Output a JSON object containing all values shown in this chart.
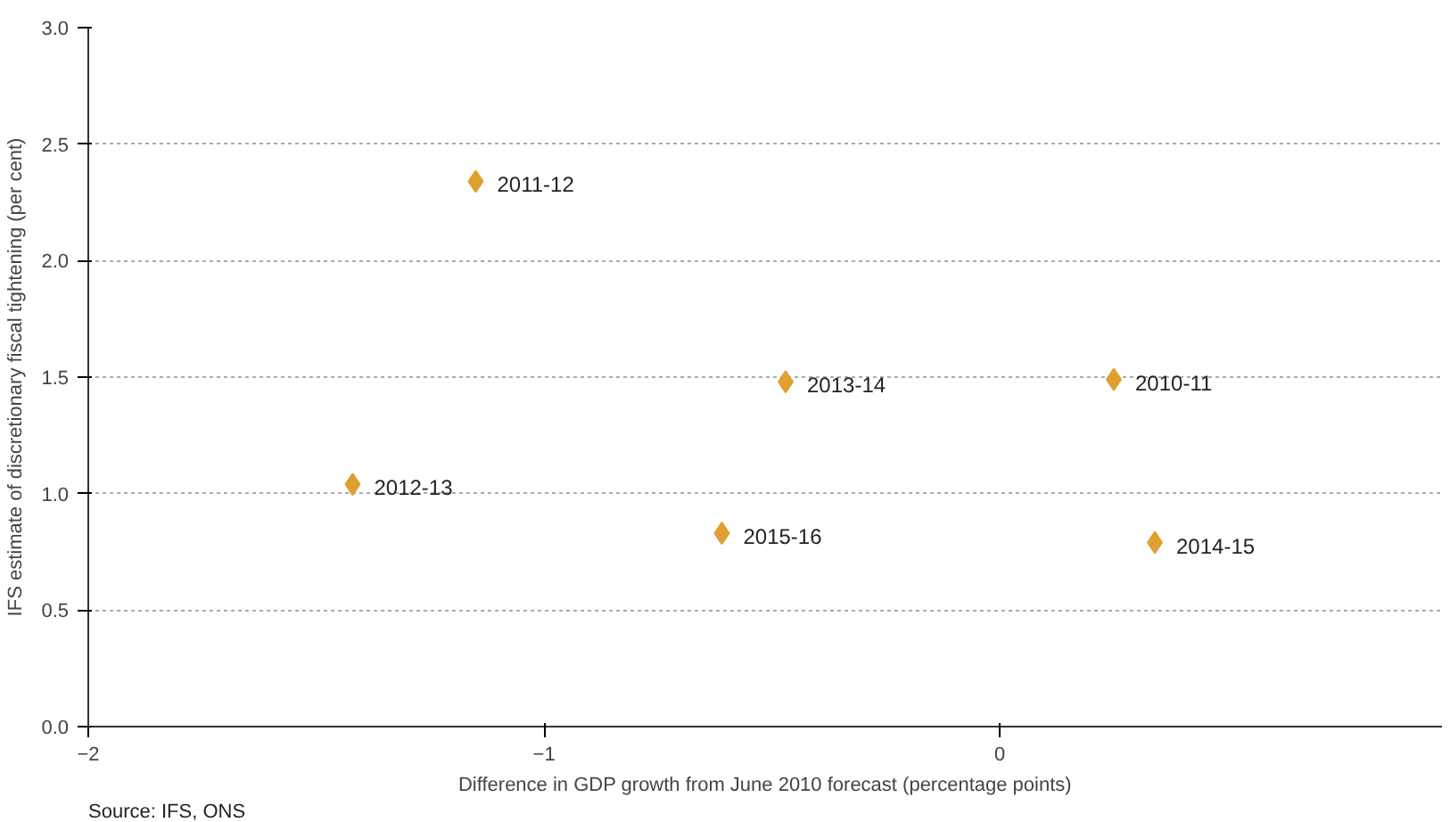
{
  "chart_data": {
    "type": "scatter",
    "xlabel": "Difference in GDP growth from June 2010 forecast (percentage points)",
    "ylabel": "IFS estimate of discretionary fiscal tightening (per cent)",
    "x": [
      -1.15,
      -0.47,
      0.25,
      -1.42,
      -0.61,
      0.34
    ],
    "series": [
      {
        "color": "#e0a030",
        "values": [
          2.34,
          1.48,
          1.49,
          1.04,
          0.83,
          0.79
        ]
      }
    ],
    "marker": "diamond",
    "xlim": [
      -2,
      0.97
    ],
    "ylim": [
      0,
      3
    ],
    "xticks": [
      -2,
      -1,
      0
    ],
    "yticks": [
      {
        "value": 0,
        "label": "0.0"
      },
      0.5,
      {
        "value": 1,
        "label": "1.0"
      },
      1.5,
      {
        "value": 2,
        "label": "2.0"
      },
      2.5,
      {
        "value": 3,
        "label": "3.0"
      }
    ],
    "grid": "y",
    "annotations": [
      {
        "text": "2011-12",
        "x": -1.15,
        "y": 2.34
      },
      {
        "text": "2013-14",
        "x": -0.47,
        "y": 1.48
      },
      {
        "text": "2010-11",
        "x": 0.25,
        "y": 1.49
      },
      {
        "text": "2012-13",
        "x": -1.42,
        "y": 1.04
      },
      {
        "text": "2015-16",
        "x": -0.61,
        "y": 0.83
      },
      {
        "text": "2014-15",
        "x": 0.34,
        "y": 0.79
      },
      "Source: IFS, ONS"
    ]
  }
}
